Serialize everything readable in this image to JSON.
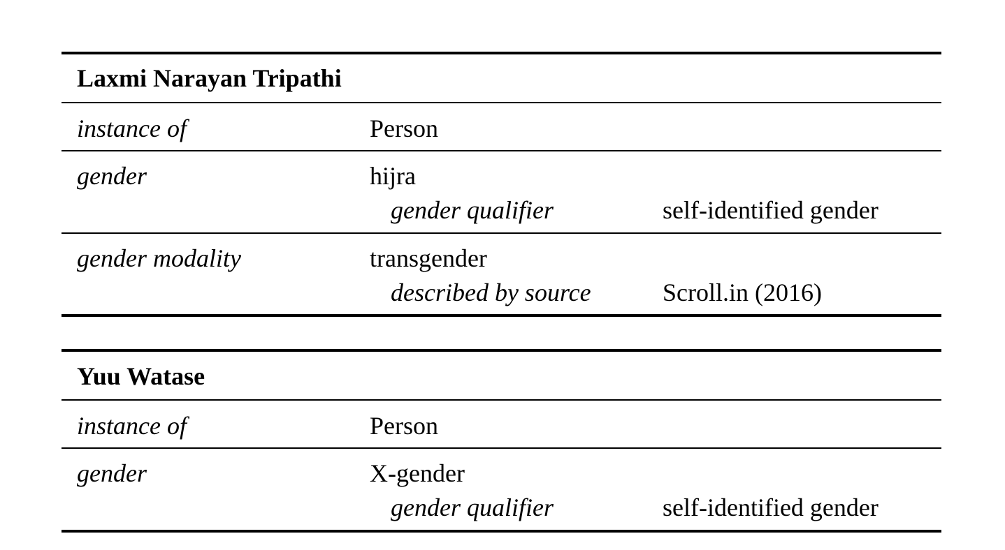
{
  "tables": [
    {
      "name": "Laxmi Narayan Tripathi",
      "rows": [
        {
          "property": "instance of",
          "value": "Person"
        },
        {
          "property": "gender",
          "value": "hijra",
          "qualifier": {
            "name": "gender qualifier",
            "value": "self-identified gender"
          }
        },
        {
          "property": "gender modality",
          "value": "transgender",
          "qualifier": {
            "name": "described by source",
            "value": "Scroll.in (2016)"
          }
        }
      ]
    },
    {
      "name": "Yuu Watase",
      "rows": [
        {
          "property": "instance of",
          "value": "Person"
        },
        {
          "property": "gender",
          "value": "X-gender",
          "qualifier": {
            "name": "gender qualifier",
            "value": "self-identified gender"
          }
        }
      ]
    }
  ]
}
